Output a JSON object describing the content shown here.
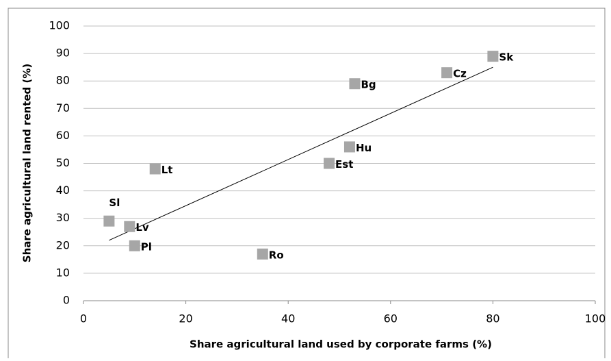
{
  "chart_data": {
    "type": "scatter",
    "xlabel": "Share agricultural land used by corporate farms (%)",
    "ylabel": "Share agricultural land rented (%)",
    "series": [
      {
        "color": "#a6a6a6",
        "labels": [
          "Sl",
          "Lv",
          "Pl",
          "Lt",
          "Ro",
          "Est",
          "Hu",
          "Bg",
          "Cz",
          "Sk"
        ],
        "x": [
          5,
          9,
          10,
          14,
          35,
          48,
          52,
          53,
          71,
          80
        ],
        "values": [
          29,
          27,
          20,
          48,
          17,
          50,
          56,
          79,
          83,
          89
        ]
      }
    ],
    "trendline": {
      "color": "#000000",
      "x": [
        5,
        80
      ],
      "values": [
        22,
        85
      ]
    },
    "xlim": [
      0,
      100
    ],
    "xticks": [
      0,
      20,
      40,
      60,
      80,
      100
    ],
    "ylim": [
      0,
      100
    ],
    "yticks": [
      0,
      10,
      20,
      30,
      40,
      50,
      60,
      70,
      80,
      90,
      100
    ],
    "grid": true
  }
}
